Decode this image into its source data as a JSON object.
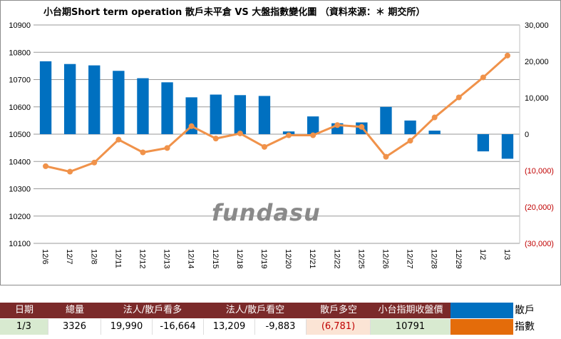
{
  "chart_data": {
    "type": "bar+line",
    "title": "小台期Short term operation 散戶未平倉 VS 大盤指數變化圖 （資料來源：＊ 期交所）",
    "categories": [
      "12/6",
      "12/7",
      "12/8",
      "12/11",
      "12/12",
      "12/13",
      "12/14",
      "12/15",
      "12/18",
      "12/19",
      "12/20",
      "12/21",
      "12/22",
      "12/25",
      "12/26",
      "12/27",
      "12/28",
      "12/29",
      "1/2",
      "1/3"
    ],
    "left_axis": {
      "ylim": [
        10100,
        10900
      ],
      "ticks": [
        "10900",
        "10800",
        "10700",
        "10600",
        "10500",
        "10400",
        "10300",
        "10200",
        "10100"
      ]
    },
    "right_axis": {
      "ylim": [
        -30000,
        30000
      ],
      "ticks": [
        "30,000",
        "20,000",
        "10,000",
        "0",
        "(10,000)",
        "(20,000)",
        "(30,000)"
      ],
      "negative_color": "#c00000"
    },
    "series": [
      {
        "type": "bar",
        "axis": "left",
        "color": "#0070c0",
        "values": [
          10767,
          10757,
          10752,
          10732,
          10705,
          10690,
          10635,
          10645,
          10643,
          10640,
          10510,
          10565,
          10540,
          10543,
          10600,
          10550,
          10513,
          null,
          10437,
          10410
        ]
      },
      {
        "type": "line",
        "axis": "right",
        "color": "#f0924a",
        "values": [
          -8800,
          -10300,
          -7800,
          -1500,
          -5000,
          -3800,
          2200,
          -1200,
          200,
          -3500,
          -300,
          -300,
          2500,
          2000,
          -6200,
          -1800,
          4600,
          10100,
          15600,
          21600
        ]
      }
    ],
    "grid": true
  },
  "watermark": "fundasu",
  "table": {
    "headers": [
      "日期",
      "總量",
      "法人/散戶看多",
      "法人/散戶看空",
      "散戶多空",
      "小台指期收盤價"
    ],
    "values": [
      "1/3",
      "3326",
      "19,990",
      "-16,664",
      "13,209",
      "-9,883",
      "(6,781)",
      "10791"
    ]
  },
  "legend": [
    {
      "label": "散戶",
      "color": "#0070c0"
    },
    {
      "label": "指數",
      "color": "#e46c0a"
    }
  ]
}
